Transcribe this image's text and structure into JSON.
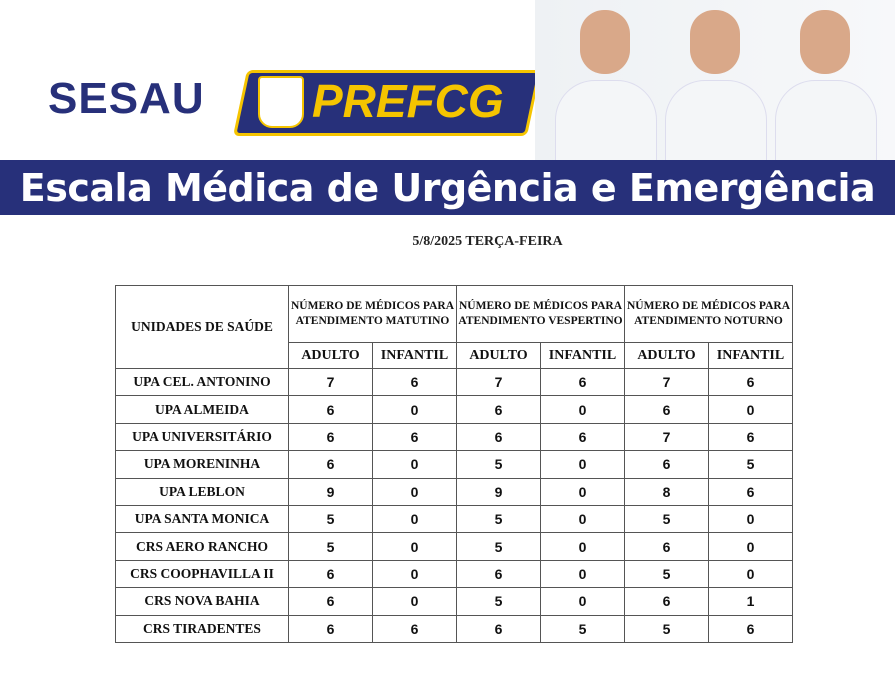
{
  "header": {
    "sesau_logo": "SESAU",
    "prefcg_logo": "PREFCG",
    "title": "Escala Médica de Urgência e Emergência",
    "colors": {
      "brand_blue": "#27307a",
      "brand_yellow": "#f5c400"
    }
  },
  "date": "5/8/2025  TERÇA-FEIRA",
  "table": {
    "unit_header": "UNIDADES DE SAÚDE",
    "periods": [
      "NÚMERO DE MÉDICOS PARA ATENDIMENTO MATUTINO",
      "NÚMERO DE MÉDICOS PARA ATENDIMENTO VESPERTINO",
      "NÚMERO DE MÉDICOS PARA ATENDIMENTO NOTURNO"
    ],
    "sub_headers": [
      "ADULTO",
      "INFANTIL",
      "ADULTO",
      "INFANTIL",
      "ADULTO",
      "INFANTIL"
    ],
    "rows": [
      {
        "name": "UPA CEL. ANTONINO",
        "values": [
          "7",
          "6",
          "7",
          "6",
          "7",
          "6"
        ]
      },
      {
        "name": "UPA ALMEIDA",
        "values": [
          "6",
          "0",
          "6",
          "0",
          "6",
          "0"
        ]
      },
      {
        "name": "UPA UNIVERSITÁRIO",
        "values": [
          "6",
          "6",
          "6",
          "6",
          "7",
          "6"
        ]
      },
      {
        "name": "UPA MORENINHA",
        "values": [
          "6",
          "0",
          "5",
          "0",
          "6",
          "5"
        ]
      },
      {
        "name": "UPA LEBLON",
        "values": [
          "9",
          "0",
          "9",
          "0",
          "8",
          "6"
        ]
      },
      {
        "name": "UPA SANTA MONICA",
        "values": [
          "5",
          "0",
          "5",
          "0",
          "5",
          "0"
        ]
      },
      {
        "name": "CRS AERO RANCHO",
        "values": [
          "5",
          "0",
          "5",
          "0",
          "6",
          "0"
        ]
      },
      {
        "name": "CRS COOPHAVILLA II",
        "values": [
          "6",
          "0",
          "6",
          "0",
          "5",
          "0"
        ]
      },
      {
        "name": "CRS NOVA BAHIA",
        "values": [
          "6",
          "0",
          "5",
          "0",
          "6",
          "1"
        ]
      },
      {
        "name": "CRS TIRADENTES",
        "values": [
          "6",
          "6",
          "6",
          "5",
          "5",
          "6"
        ]
      }
    ]
  }
}
